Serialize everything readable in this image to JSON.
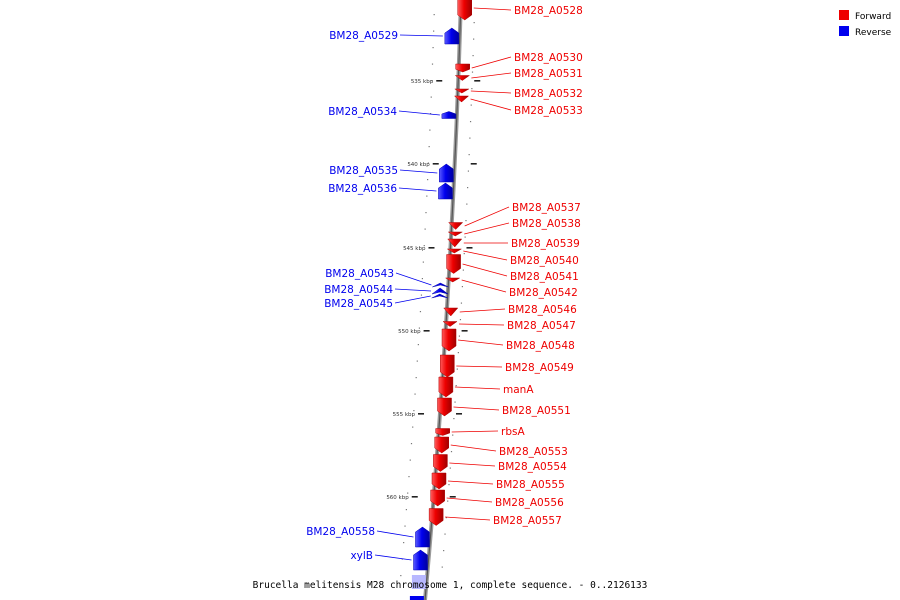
{
  "legend": {
    "forward_label": "Forward",
    "reverse_label": "Reverse",
    "forward_color": "#ee0000",
    "reverse_color": "#0000ee"
  },
  "caption": "Brucella melitensis M28 chromosome 1, complete sequence. - 0..2126133",
  "ticks": [
    "535 kbp",
    "540 kbp",
    "545 kbp",
    "550 kbp",
    "555 kbp",
    "560 kbp"
  ],
  "genes": [
    {
      "name": "BM28_A0528",
      "strand": "forward"
    },
    {
      "name": "BM28_A0529",
      "strand": "reverse"
    },
    {
      "name": "BM28_A0530",
      "strand": "forward"
    },
    {
      "name": "BM28_A0531",
      "strand": "forward"
    },
    {
      "name": "BM28_A0532",
      "strand": "forward"
    },
    {
      "name": "BM28_A0533",
      "strand": "forward"
    },
    {
      "name": "BM28_A0534",
      "strand": "reverse"
    },
    {
      "name": "BM28_A0535",
      "strand": "reverse"
    },
    {
      "name": "BM28_A0536",
      "strand": "reverse"
    },
    {
      "name": "BM28_A0537",
      "strand": "forward"
    },
    {
      "name": "BM28_A0538",
      "strand": "forward"
    },
    {
      "name": "BM28_A0539",
      "strand": "forward"
    },
    {
      "name": "BM28_A0540",
      "strand": "forward"
    },
    {
      "name": "BM28_A0541",
      "strand": "forward"
    },
    {
      "name": "BM28_A0542",
      "strand": "forward"
    },
    {
      "name": "BM28_A0543",
      "strand": "reverse"
    },
    {
      "name": "BM28_A0544",
      "strand": "reverse"
    },
    {
      "name": "BM28_A0545",
      "strand": "reverse"
    },
    {
      "name": "BM28_A0546",
      "strand": "forward"
    },
    {
      "name": "BM28_A0547",
      "strand": "forward"
    },
    {
      "name": "BM28_A0548",
      "strand": "forward"
    },
    {
      "name": "BM28_A0549",
      "strand": "forward"
    },
    {
      "name": "manA",
      "strand": "forward"
    },
    {
      "name": "BM28_A0551",
      "strand": "forward"
    },
    {
      "name": "rbsA",
      "strand": "forward"
    },
    {
      "name": "BM28_A0553",
      "strand": "forward"
    },
    {
      "name": "BM28_A0554",
      "strand": "forward"
    },
    {
      "name": "BM28_A0555",
      "strand": "forward"
    },
    {
      "name": "BM28_A0556",
      "strand": "forward"
    },
    {
      "name": "BM28_A0557",
      "strand": "forward"
    },
    {
      "name": "BM28_A0558",
      "strand": "reverse"
    },
    {
      "name": "xylB",
      "strand": "reverse"
    }
  ]
}
